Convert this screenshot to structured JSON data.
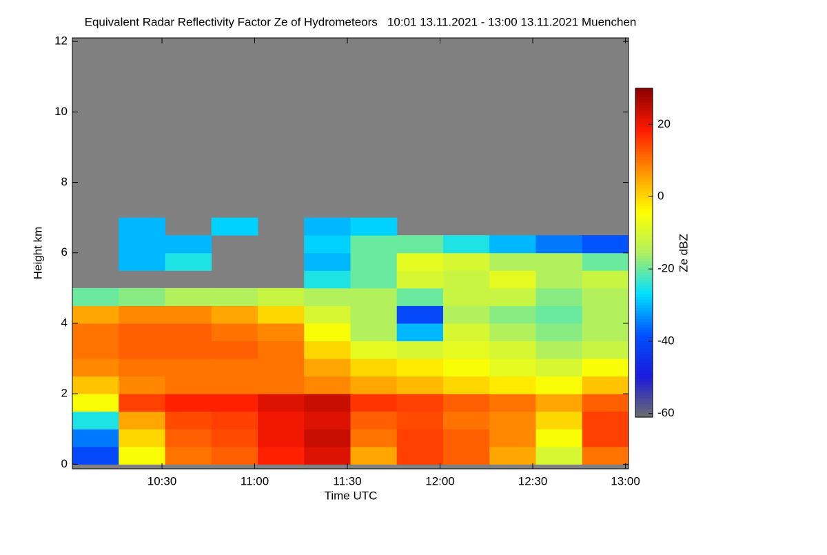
{
  "chart_data": {
    "type": "heatmap",
    "title": "Equivalent Radar Reflectivity Factor Ze of Hydrometeors   10:01 13.11.2021 - 13:00 13.11.2021 Muenchen",
    "x_label": "Time UTC",
    "y_label": "Height km",
    "colorbar_label": "Ze dBZ",
    "x": [
      608.5,
      623.5,
      638.5,
      653.5,
      668.5,
      683.5,
      698.5,
      713.5,
      728.5,
      743.5,
      758.5,
      773.5
    ],
    "y": [
      0.25,
      0.75,
      1.25,
      1.75,
      2.25,
      2.75,
      3.25,
      3.75,
      4.25,
      4.75,
      5.25,
      5.75,
      6.25,
      6.75,
      7.25,
      7.75,
      8.25,
      8.75,
      9.25,
      9.75,
      10.25,
      10.75,
      11.25,
      11.75
    ],
    "z": [
      [
        -40,
        -5,
        10,
        12,
        18,
        22,
        5,
        15,
        12,
        5,
        -10,
        10
      ],
      [
        -35,
        0,
        12,
        14,
        20,
        24,
        10,
        15,
        12,
        8,
        -5,
        15
      ],
      [
        -25,
        5,
        14,
        15,
        20,
        22,
        12,
        14,
        10,
        8,
        0,
        15
      ],
      [
        -5,
        15,
        18,
        18,
        22,
        24,
        16,
        15,
        12,
        10,
        5,
        12
      ],
      [
        2,
        8,
        10,
        10,
        10,
        8,
        5,
        3,
        0,
        -2,
        -5,
        2
      ],
      [
        8,
        10,
        10,
        10,
        10,
        5,
        0,
        -2,
        -5,
        -8,
        -10,
        -5
      ],
      [
        10,
        12,
        12,
        12,
        10,
        0,
        -8,
        -10,
        -8,
        -10,
        -15,
        -12
      ],
      [
        10,
        12,
        12,
        10,
        8,
        -5,
        -15,
        -30,
        -10,
        -15,
        -18,
        -15
      ],
      [
        5,
        8,
        8,
        5,
        0,
        -10,
        -15,
        -40,
        -15,
        -18,
        -20,
        -15
      ],
      [
        -20,
        -18,
        -15,
        -15,
        -12,
        -15,
        -15,
        -20,
        -12,
        -12,
        -18,
        -15
      ],
      [
        null,
        null,
        null,
        null,
        null,
        -25,
        -20,
        -10,
        -12,
        -8,
        -15,
        -12
      ],
      [
        null,
        -30,
        -25,
        null,
        null,
        -30,
        -20,
        -8,
        -10,
        -15,
        -15,
        -20
      ],
      [
        null,
        -30,
        -30,
        null,
        null,
        -28,
        -20,
        -20,
        -25,
        -30,
        -35,
        -38
      ],
      [
        null,
        -30,
        null,
        -28,
        null,
        -30,
        -28,
        null,
        null,
        null,
        null,
        null
      ],
      [
        null,
        null,
        null,
        null,
        null,
        null,
        null,
        null,
        null,
        null,
        null,
        null
      ],
      [
        null,
        null,
        null,
        null,
        null,
        null,
        null,
        null,
        null,
        null,
        null,
        null
      ],
      [
        null,
        null,
        null,
        null,
        null,
        null,
        null,
        null,
        null,
        null,
        null,
        null
      ],
      [
        null,
        null,
        null,
        null,
        null,
        null,
        null,
        null,
        null,
        null,
        null,
        null
      ],
      [
        null,
        null,
        null,
        null,
        null,
        null,
        null,
        null,
        null,
        null,
        null,
        null
      ],
      [
        null,
        null,
        null,
        null,
        null,
        null,
        null,
        null,
        null,
        null,
        null,
        null
      ],
      [
        null,
        null,
        null,
        null,
        null,
        null,
        null,
        null,
        null,
        null,
        null,
        null
      ],
      [
        null,
        null,
        null,
        null,
        null,
        null,
        null,
        null,
        null,
        null,
        null,
        null
      ],
      [
        null,
        null,
        null,
        null,
        null,
        null,
        null,
        null,
        null,
        null,
        null,
        null
      ],
      [
        null,
        null,
        null,
        null,
        null,
        null,
        null,
        null,
        null,
        null,
        null,
        null
      ]
    ],
    "xlim": [
      601,
      781
    ],
    "xticks": [
      {
        "value": 630,
        "label": "10:30"
      },
      {
        "value": 660,
        "label": "11:00"
      },
      {
        "value": 690,
        "label": "11:30"
      },
      {
        "value": 720,
        "label": "12:00"
      },
      {
        "value": 750,
        "label": "12:30"
      },
      {
        "value": 780,
        "label": "13:00"
      }
    ],
    "ylim": [
      -0.13,
      12.1
    ],
    "yticks": [
      0,
      2,
      4,
      6,
      8,
      10,
      12
    ],
    "zlim": [
      -61,
      30
    ],
    "zticks": [
      -60,
      -40,
      -20,
      0,
      20
    ],
    "colorscale": [
      "#6e6e6e",
      "#1a1adc",
      "#0050ff",
      "#00e0ff",
      "#b0f060",
      "#ffff00",
      "#ff9000",
      "#ff1a00",
      "#8b0000"
    ],
    "missing_color": "#808080"
  }
}
